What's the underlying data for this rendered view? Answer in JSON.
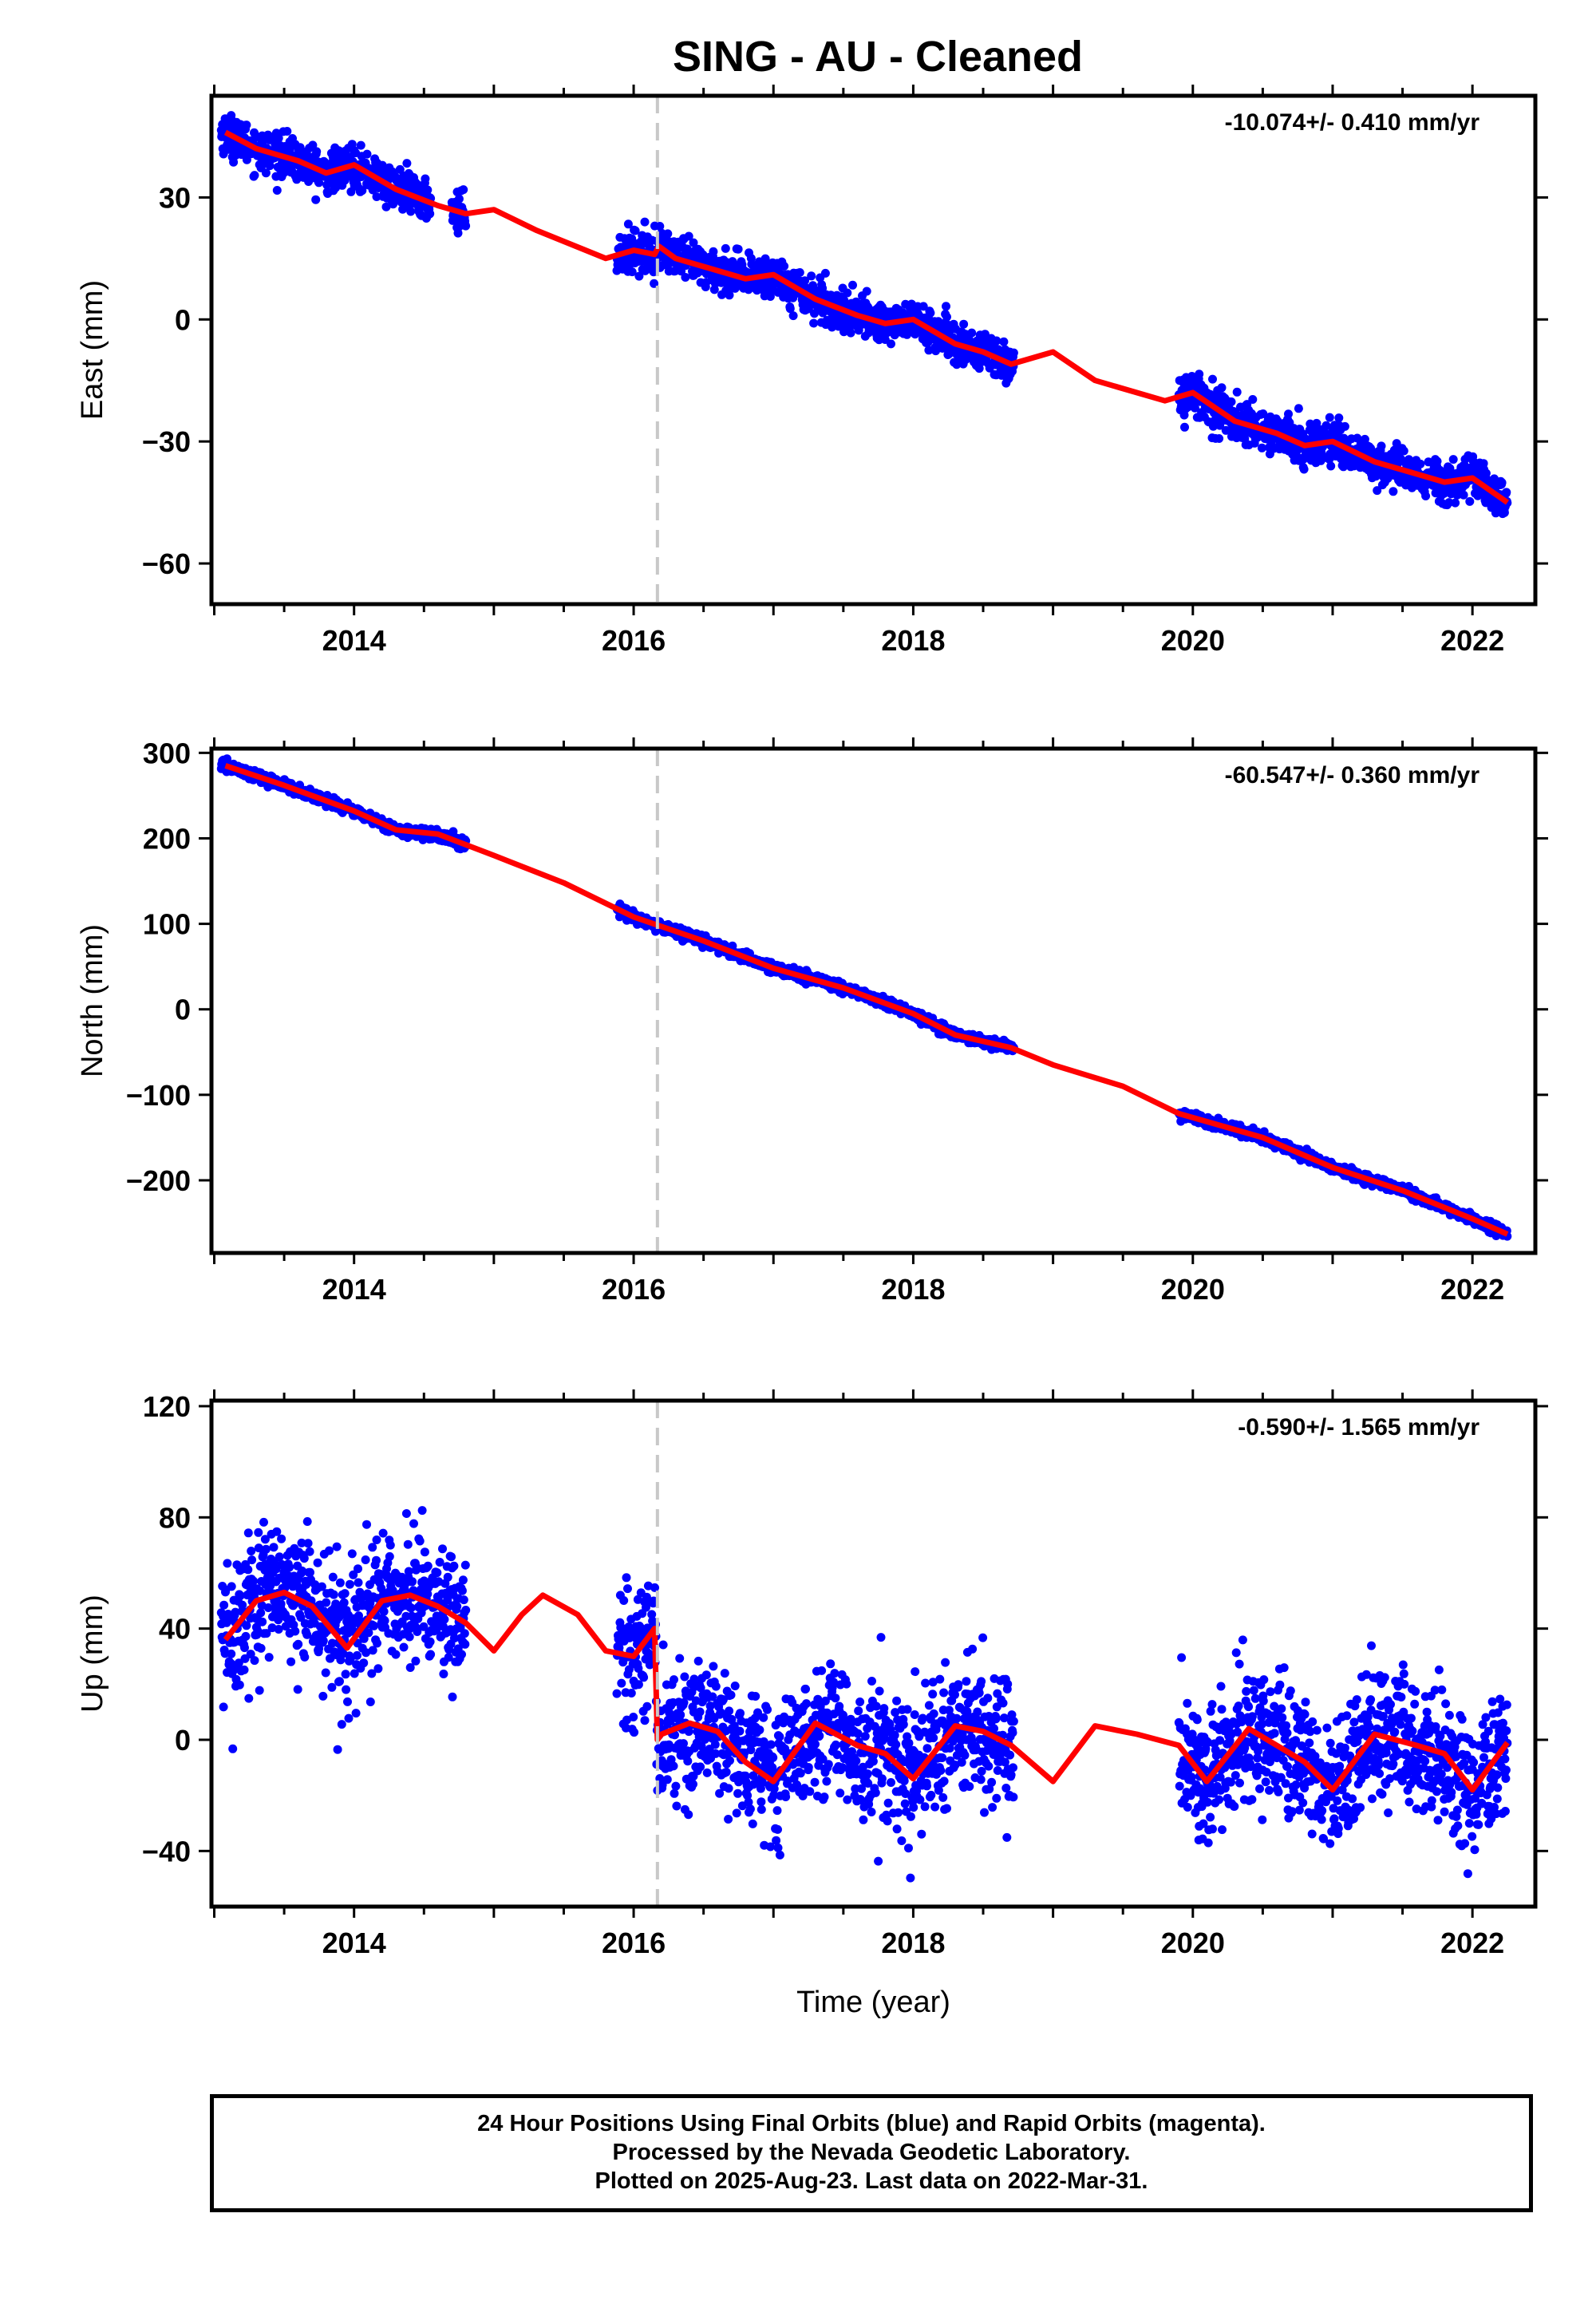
{
  "title": "SING  - AU - Cleaned",
  "footer": {
    "line1": "24 Hour Positions Using Final Orbits (blue) and Rapid Orbits (magenta).",
    "line2": "Processed by the Nevada Geodetic Laboratory.",
    "line3": "Plotted on 2025-Aug-23. Last data on 2022-Mar-31."
  },
  "colors": {
    "points": "#0000ff",
    "fit": "#ff0000",
    "break_line": "#c8c8c8",
    "axes": "#000000"
  },
  "chart_data": [
    {
      "type": "scatter",
      "panel": "east",
      "ylabel": "East (mm)",
      "rate_label": "-10.074+/- 0.410 mm/yr",
      "xlim": [
        2012.98,
        2022.45
      ],
      "ylim": [
        -70,
        55
      ],
      "xticks": [
        2014,
        2016,
        2018,
        2020,
        2022
      ],
      "yticks": [
        -60,
        -30,
        0,
        30
      ],
      "break_year": 2016.17,
      "data_segments": [
        [
          2013.05,
          2014.55
        ],
        [
          2014.7,
          2014.8
        ],
        [
          2015.88,
          2018.72
        ],
        [
          2019.9,
          2022.25
        ]
      ],
      "scatter_std": 2.5,
      "fit": {
        "x": [
          2013.08,
          2013.3,
          2013.6,
          2013.8,
          2014.0,
          2014.3,
          2014.6,
          2014.8,
          2015.0,
          2015.3,
          2015.8,
          2016.0,
          2016.15,
          2016.18,
          2016.3,
          2016.6,
          2016.8,
          2017.0,
          2017.3,
          2017.6,
          2017.8,
          2018.0,
          2018.3,
          2018.5,
          2018.7,
          2019.0,
          2019.3,
          2019.8,
          2020.0,
          2020.3,
          2020.6,
          2020.8,
          2021.0,
          2021.3,
          2021.6,
          2021.8,
          2022.0,
          2022.25
        ],
        "y": [
          46,
          42,
          39,
          36,
          38,
          32,
          28,
          26,
          27,
          22,
          15,
          17,
          16,
          18,
          15,
          12,
          10,
          11,
          5,
          1,
          -1,
          0,
          -6,
          -8,
          -11,
          -8,
          -15,
          -20,
          -18,
          -25,
          -28,
          -31,
          -30,
          -35,
          -38,
          -40,
          -39,
          -45
        ]
      }
    },
    {
      "type": "scatter",
      "panel": "north",
      "ylabel": "North (mm)",
      "rate_label": "-60.547+/- 0.360 mm/yr",
      "xlim": [
        2012.98,
        2022.45
      ],
      "ylim": [
        -285,
        305
      ],
      "xticks": [
        2014,
        2016,
        2018,
        2020,
        2022
      ],
      "yticks": [
        -200,
        -100,
        0,
        100,
        200,
        300
      ],
      "break_year": 2016.17,
      "data_segments": [
        [
          2013.05,
          2014.8
        ],
        [
          2015.88,
          2018.72
        ],
        [
          2019.9,
          2022.25
        ]
      ],
      "scatter_std": 3,
      "fit": {
        "x": [
          2013.08,
          2013.5,
          2014.0,
          2014.3,
          2014.6,
          2015.0,
          2015.5,
          2016.0,
          2016.5,
          2017.0,
          2017.5,
          2018.0,
          2018.3,
          2018.7,
          2019.0,
          2019.5,
          2019.9,
          2020.5,
          2021.0,
          2021.5,
          2022.0,
          2022.25
        ],
        "y": [
          285,
          262,
          232,
          210,
          205,
          180,
          148,
          108,
          80,
          48,
          25,
          -5,
          -30,
          -45,
          -65,
          -90,
          -122,
          -150,
          -185,
          -212,
          -245,
          -263
        ]
      }
    },
    {
      "type": "scatter",
      "panel": "up",
      "ylabel": "Up (mm)",
      "xlabel": "Time (year)",
      "rate_label": "-0.590+/- 1.565 mm/yr",
      "xlim": [
        2012.98,
        2022.45
      ],
      "ylim": [
        -60,
        122
      ],
      "xticks": [
        2014,
        2016,
        2018,
        2020,
        2022
      ],
      "yticks": [
        -40,
        0,
        40,
        80,
        120
      ],
      "break_year": 2016.17,
      "data_segments": [
        [
          2013.05,
          2014.8
        ],
        [
          2015.88,
          2018.72
        ],
        [
          2019.9,
          2022.25
        ]
      ],
      "scatter_std": 12,
      "fit": {
        "x": [
          2013.08,
          2013.3,
          2013.5,
          2013.7,
          2013.95,
          2014.2,
          2014.4,
          2014.6,
          2014.8,
          2015.0,
          2015.2,
          2015.35,
          2015.6,
          2015.8,
          2016.0,
          2016.15,
          2016.17,
          2016.2,
          2016.4,
          2016.6,
          2016.8,
          2017.0,
          2017.3,
          2017.6,
          2017.8,
          2018.0,
          2018.3,
          2018.5,
          2018.7,
          2019.0,
          2019.3,
          2019.6,
          2019.9,
          2020.1,
          2020.4,
          2020.6,
          2020.8,
          2021.0,
          2021.3,
          2021.6,
          2021.8,
          2022.0,
          2022.25
        ],
        "y": [
          36,
          50,
          53,
          48,
          33,
          50,
          52,
          48,
          42,
          32,
          45,
          52,
          45,
          32,
          30,
          40,
          0,
          2,
          6,
          3,
          -8,
          -15,
          6,
          -2,
          -5,
          -14,
          5,
          3,
          -2,
          -15,
          5,
          2,
          -2,
          -15,
          4,
          -2,
          -8,
          -18,
          2,
          -2,
          -5,
          -18,
          -1
        ]
      }
    }
  ]
}
